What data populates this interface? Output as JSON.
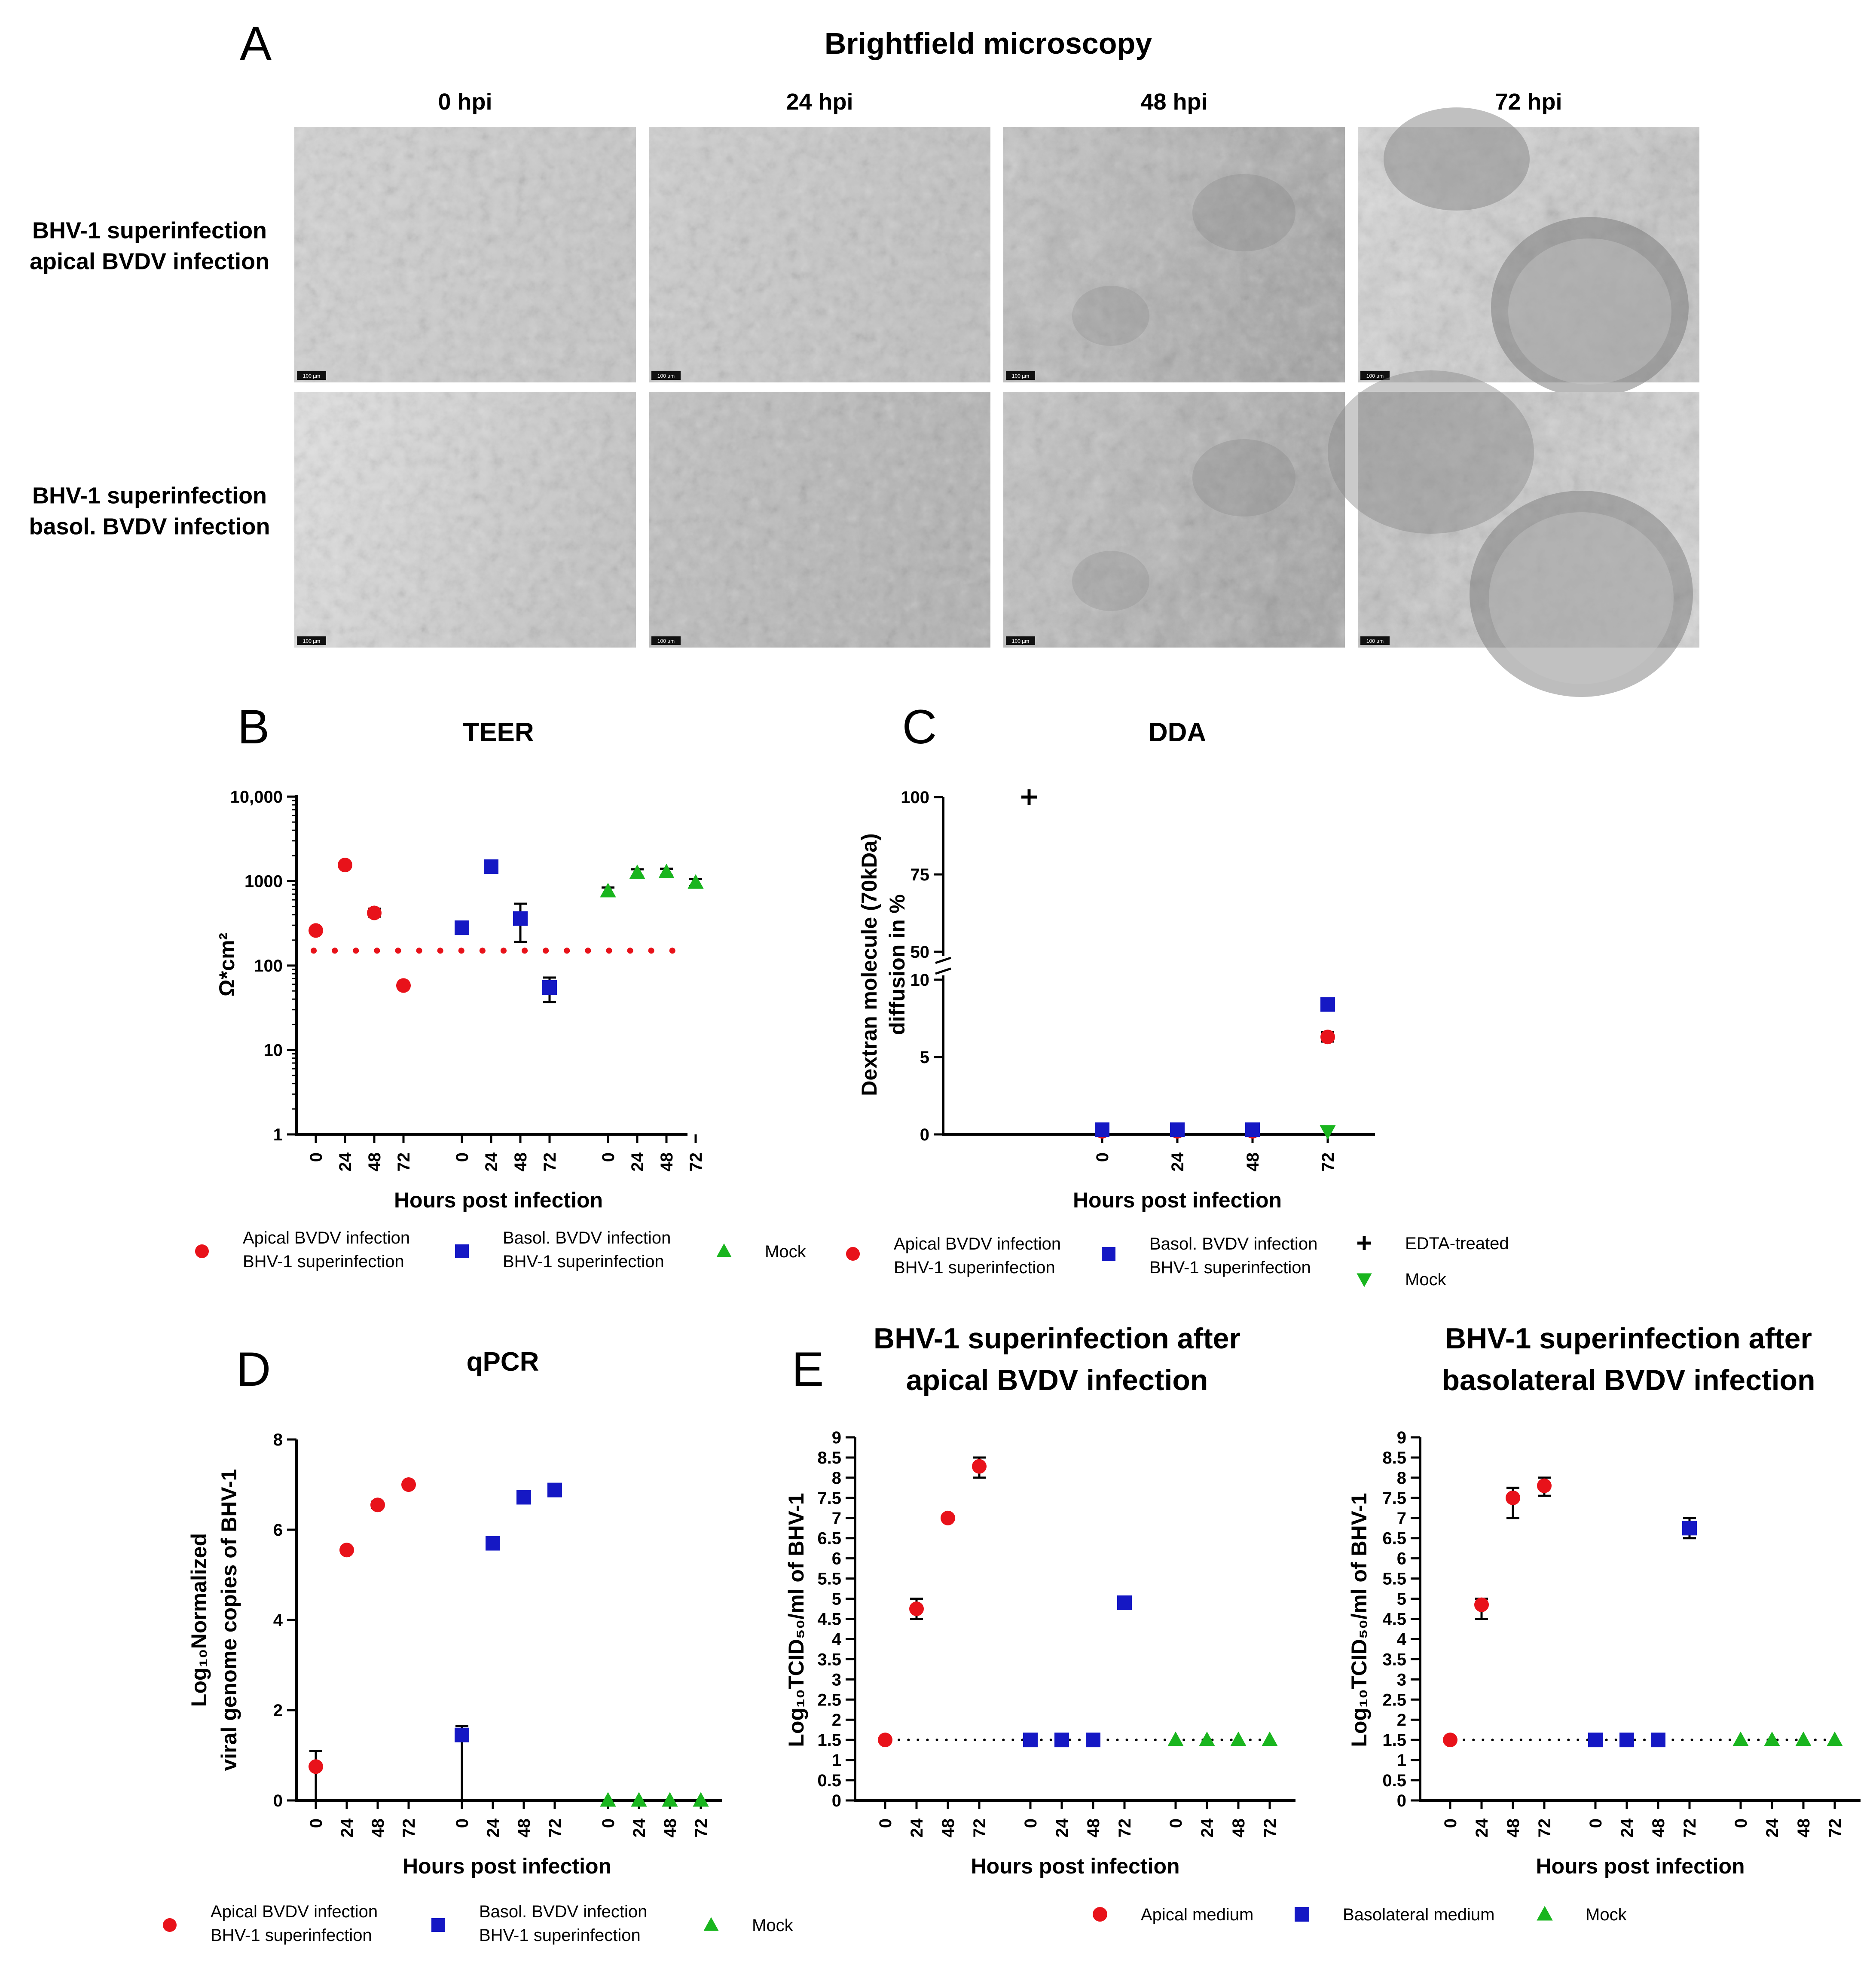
{
  "colors": {
    "red": "#e8121a",
    "blue": "#1518c4",
    "green": "#19b51e",
    "black": "#000000"
  },
  "panel_letters": {
    "a": "A",
    "b": "B",
    "c": "C",
    "d": "D",
    "e": "E"
  },
  "panel_a": {
    "title": "Brightfield microscopy",
    "columns": [
      "0 hpi",
      "24 hpi",
      "48 hpi",
      "72 hpi"
    ],
    "rows": [
      [
        "BHV-1 superinfection",
        "apical BVDV infection"
      ],
      [
        "BHV-1 superinfection",
        "basol. BVDV infection"
      ]
    ],
    "scale_bar": "100 µm"
  },
  "legends": {
    "bd": [
      {
        "marker": "circle",
        "color": "red",
        "label": [
          "Apical BVDV infection",
          "BHV-1 superinfection"
        ]
      },
      {
        "marker": "square",
        "color": "blue",
        "label": [
          "Basol. BVDV infection",
          "BHV-1 superinfection"
        ]
      },
      {
        "marker": "triangle",
        "color": "green",
        "label": [
          "Mock"
        ]
      }
    ],
    "c": [
      {
        "marker": "circle",
        "color": "red",
        "label": [
          "Apical BVDV infection",
          "BHV-1 superinfection"
        ]
      },
      {
        "marker": "square",
        "color": "blue",
        "label": [
          "Basol. BVDV infection",
          "BHV-1 superinfection"
        ]
      },
      {
        "marker": "plus",
        "color": "black",
        "label": [
          "EDTA-treated"
        ]
      },
      {
        "marker": "triangle-down",
        "color": "green",
        "label": [
          "Mock"
        ]
      }
    ],
    "e": [
      {
        "marker": "circle",
        "color": "red",
        "label": [
          "Apical medium"
        ]
      },
      {
        "marker": "square",
        "color": "blue",
        "label": [
          "Basolateral medium"
        ]
      },
      {
        "marker": "triangle",
        "color": "green",
        "label": [
          "Mock"
        ]
      }
    ]
  },
  "chart_data": [
    {
      "id": "B",
      "type": "scatter",
      "title": "TEER",
      "xlabel": "Hours post infection",
      "ylabel": "Ω*cm²",
      "yscale": "log",
      "ylim": [
        1,
        10000
      ],
      "yticks": [
        "1",
        "10",
        "100",
        "1000",
        "10,000"
      ],
      "x": [
        "0",
        "24",
        "48",
        "72",
        "0",
        "24",
        "48",
        "72",
        "0",
        "24",
        "48",
        "72"
      ],
      "reference_line": {
        "y": 150,
        "color": "red",
        "style": "dotted"
      },
      "series": [
        {
          "name": "Apical BVDV infection BHV-1 superinfection",
          "marker": "circle",
          "color": "red",
          "values": [
            260,
            1550,
            420,
            58
          ],
          "err_hi": [
            null,
            null,
            470,
            null
          ],
          "err_lo": [
            null,
            null,
            380,
            null
          ]
        },
        {
          "name": "Basol. BVDV infection BHV-1 superinfection",
          "marker": "square",
          "color": "blue",
          "values": [
            280,
            1480,
            360,
            55
          ],
          "err_hi": [
            null,
            null,
            540,
            72
          ],
          "err_lo": [
            null,
            null,
            190,
            37
          ]
        },
        {
          "name": "Mock",
          "marker": "triangle",
          "color": "green",
          "values": [
            760,
            1250,
            1280,
            960
          ],
          "err_hi": [
            840,
            1380,
            1400,
            1060
          ],
          "err_lo": [
            680,
            1130,
            1160,
            870
          ]
        }
      ]
    },
    {
      "id": "C",
      "type": "scatter",
      "title": "DDA",
      "xlabel": "Hours post infection",
      "ylabel": [
        "Dextran molecule (70kDa)",
        "diffusion in %"
      ],
      "x": [
        "0",
        "24",
        "48",
        "72"
      ],
      "ylim_lower": [
        0,
        10
      ],
      "ylim_upper": [
        50,
        100
      ],
      "yticks": [
        "0",
        "5",
        "10",
        "50",
        "75",
        "100"
      ],
      "series": [
        {
          "name": "Apical BVDV infection BHV-1 superinfection",
          "marker": "circle",
          "color": "red",
          "values": [
            0.2,
            0.2,
            0.2,
            6.3
          ],
          "err_hi": [
            null,
            null,
            null,
            6.6
          ],
          "err_lo": [
            null,
            null,
            null,
            6.0
          ]
        },
        {
          "name": "Basol. BVDV infection BHV-1 superinfection",
          "marker": "square",
          "color": "blue",
          "values": [
            0.3,
            0.3,
            0.3,
            8.4
          ]
        },
        {
          "name": "EDTA-treated",
          "marker": "plus",
          "color": "black",
          "values": [
            100
          ]
        },
        {
          "name": "Mock",
          "marker": "triangle-down",
          "color": "green",
          "values": [
            null,
            null,
            null,
            0.2
          ]
        }
      ]
    },
    {
      "id": "D",
      "type": "scatter",
      "title": "qPCR",
      "xlabel": "Hours post infection",
      "ylabel": [
        "Log₁₀Normalized",
        "viral genome copies of BHV-1"
      ],
      "ylim": [
        0,
        8
      ],
      "yticks": [
        "0",
        "2",
        "4",
        "6",
        "8"
      ],
      "x": [
        "0",
        "24",
        "48",
        "72",
        "0",
        "24",
        "48",
        "72",
        "0",
        "24",
        "48",
        "72"
      ],
      "series": [
        {
          "name": "Apical BVDV infection BHV-1 superinfection",
          "marker": "circle",
          "color": "red",
          "values": [
            0.75,
            5.55,
            6.55,
            7.0
          ],
          "err_hi": [
            1.1,
            null,
            6.62,
            null
          ],
          "err_lo": [
            0,
            null,
            6.48,
            null
          ]
        },
        {
          "name": "Basol. BVDV infection BHV-1 superinfection",
          "marker": "square",
          "color": "blue",
          "values": [
            1.45,
            5.7,
            6.72,
            6.88
          ],
          "err_hi": [
            1.65,
            null,
            null,
            null
          ],
          "err_lo": [
            0,
            null,
            null,
            null
          ]
        },
        {
          "name": "Mock",
          "marker": "triangle",
          "color": "green",
          "values": [
            0,
            0,
            0,
            0
          ]
        }
      ]
    },
    {
      "id": "E1",
      "type": "scatter",
      "title": [
        "BHV-1 superinfection after",
        "apical BVDV infection"
      ],
      "xlabel": "Hours post infection",
      "ylabel": "Log₁₀TCID₅₀/ml of BHV-1",
      "ylim": [
        0,
        9
      ],
      "yticks": [
        "0",
        "0.5",
        "1",
        "1.5",
        "2",
        "2.5",
        "3",
        "3.5",
        "4",
        "4.5",
        "5",
        "5.5",
        "6",
        "6.5",
        "7",
        "7.5",
        "8",
        "8.5",
        "9"
      ],
      "reference_line": {
        "y": 1.5,
        "color": "black",
        "style": "dotted"
      },
      "x": [
        "0",
        "24",
        "48",
        "72",
        "0",
        "24",
        "48",
        "72",
        "0",
        "24",
        "48",
        "72"
      ],
      "series": [
        {
          "name": "Apical medium",
          "marker": "circle",
          "color": "red",
          "values": [
            1.5,
            4.75,
            7.0,
            8.28
          ],
          "err_hi": [
            null,
            5.0,
            null,
            8.5
          ],
          "err_lo": [
            null,
            4.5,
            null,
            8.0
          ]
        },
        {
          "name": "Basolateral medium",
          "marker": "square",
          "color": "blue",
          "values": [
            1.5,
            1.5,
            1.5,
            4.9
          ]
        },
        {
          "name": "Mock",
          "marker": "triangle",
          "color": "green",
          "values": [
            1.5,
            1.5,
            1.5,
            1.5
          ]
        }
      ]
    },
    {
      "id": "E2",
      "type": "scatter",
      "title": [
        "BHV-1 superinfection after",
        "basolateral BVDV infection"
      ],
      "xlabel": "Hours post infection",
      "ylabel": "Log₁₀TCID₅₀/ml of BHV-1",
      "ylim": [
        0,
        9
      ],
      "yticks": [
        "0",
        "0.5",
        "1",
        "1.5",
        "2",
        "2.5",
        "3",
        "3.5",
        "4",
        "4.5",
        "5",
        "5.5",
        "6",
        "6.5",
        "7",
        "7.5",
        "8",
        "8.5",
        "9"
      ],
      "reference_line": {
        "y": 1.5,
        "color": "black",
        "style": "dotted"
      },
      "x": [
        "0",
        "24",
        "48",
        "72",
        "0",
        "24",
        "48",
        "72",
        "0",
        "24",
        "48",
        "72"
      ],
      "series": [
        {
          "name": "Apical medium",
          "marker": "circle",
          "color": "red",
          "values": [
            1.5,
            4.85,
            7.5,
            7.8
          ],
          "err_hi": [
            null,
            5.0,
            7.75,
            8.0
          ],
          "err_lo": [
            null,
            4.5,
            7.0,
            7.55
          ]
        },
        {
          "name": "Basolateral medium",
          "marker": "square",
          "color": "blue",
          "values": [
            1.5,
            1.5,
            1.5,
            6.75
          ],
          "err_hi": [
            null,
            null,
            null,
            7.0
          ],
          "err_lo": [
            null,
            null,
            null,
            6.5
          ]
        },
        {
          "name": "Mock",
          "marker": "triangle",
          "color": "green",
          "values": [
            1.5,
            1.5,
            1.5,
            1.5
          ]
        }
      ]
    }
  ]
}
